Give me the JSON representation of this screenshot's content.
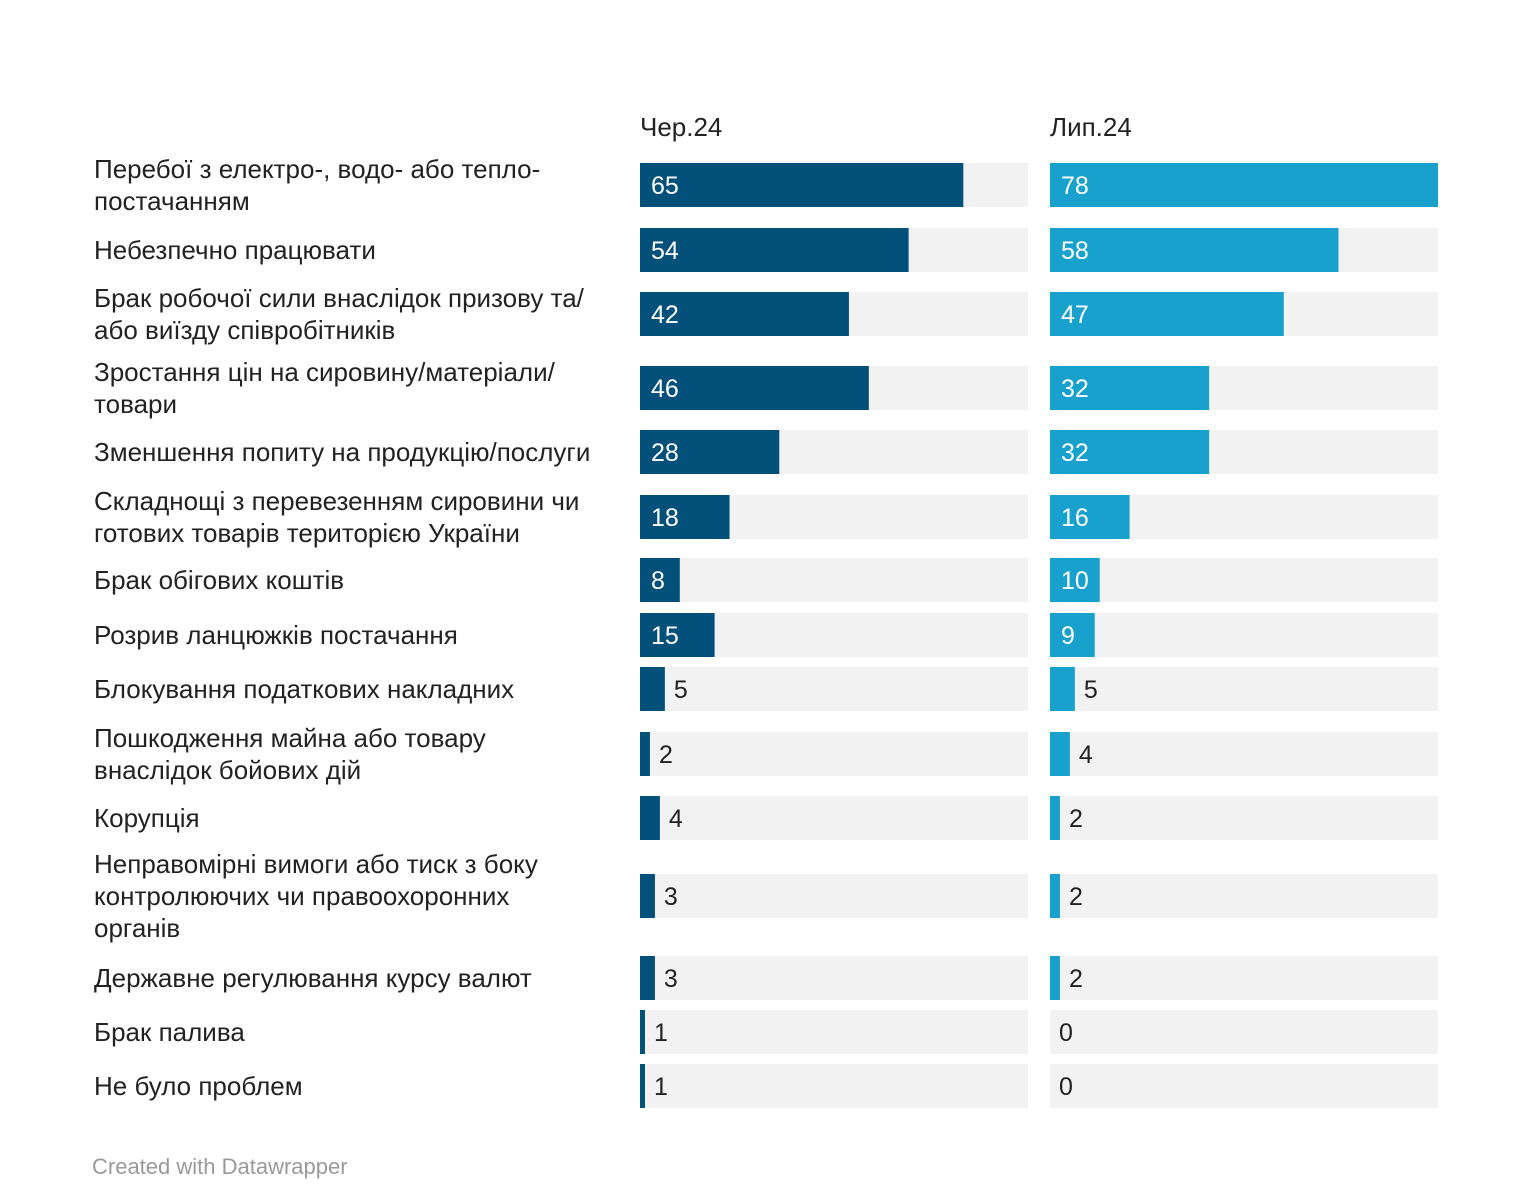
{
  "chart_data": {
    "type": "bar",
    "orientation": "horizontal",
    "layout": "split-columns",
    "categories": [
      [
        "Перебої з електро-, водо- або тепло-",
        "постачанням"
      ],
      [
        "Небезпечно працювати"
      ],
      [
        "Брак робочої сили внаслідок призову та/",
        "або виїзду співробітників"
      ],
      [
        "Зростання цін на сировину/матеріали/",
        "товари"
      ],
      [
        "Зменшення попиту на продукцію/послуги"
      ],
      [
        "Складнощі з перевезенням сировини чи",
        "готових товарів територією України"
      ],
      [
        "Брак обігових коштів"
      ],
      [
        "Розрив ланцюжків постачання"
      ],
      [
        "Блокування податкових накладних"
      ],
      [
        "Пошкодження майна або товару",
        "внаслідок бойових дій"
      ],
      [
        "Корупція"
      ],
      [
        "Неправомірні вимоги або тиск з боку",
        "контролюючих чи правоохоронних",
        "органів"
      ],
      [
        "Державне регулювання курсу валют"
      ],
      [
        "Брак палива"
      ],
      [
        "Не було проблем"
      ]
    ],
    "series": [
      {
        "name": "Чер.24",
        "color": "#03507a",
        "values": [
          65,
          54,
          42,
          46,
          28,
          18,
          8,
          15,
          5,
          2,
          4,
          3,
          3,
          1,
          1
        ]
      },
      {
        "name": "Лип.24",
        "color": "#18a1cd",
        "values": [
          78,
          58,
          47,
          32,
          32,
          16,
          10,
          9,
          5,
          4,
          2,
          2,
          2,
          0,
          0
        ]
      }
    ],
    "xlim": [
      0,
      78
    ],
    "background_bar_color": "#f2f2f2",
    "grid": false,
    "legend": "column headers"
  },
  "credit": "Created with Datawrapper"
}
